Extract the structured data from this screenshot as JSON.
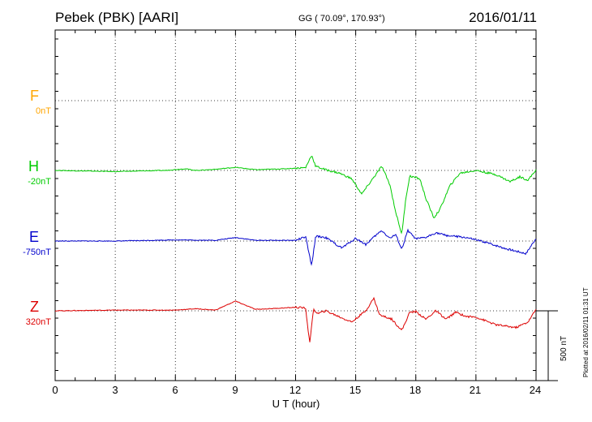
{
  "header": {
    "station": "Pebek (PBK)  [AARI]",
    "coords": "GG ( 70.09°, 170.93°)",
    "date": "2016/01/11"
  },
  "components": [
    {
      "name": "F",
      "offset": "0nT",
      "color": "#ffa500"
    },
    {
      "name": "H",
      "offset": "-20nT",
      "color": "#00cc00"
    },
    {
      "name": "E",
      "offset": "-750nT",
      "color": "#0000cc"
    },
    {
      "name": "Z",
      "offset": "320nT",
      "color": "#dd0000"
    }
  ],
  "scale_bar": {
    "label": "500 nT",
    "value": 500
  },
  "plotted_note": "Plotted at 2016/02/11 01:31  UT",
  "chart_data": {
    "type": "line",
    "title": "Pebek (PBK)  [AARI]",
    "xlabel": "U T (hour)",
    "xlim": [
      0,
      24
    ],
    "xticks": [
      "0",
      "3",
      "6",
      "9",
      "12",
      "15",
      "18",
      "21",
      "24"
    ],
    "grid": true,
    "units": "nT",
    "series": [
      {
        "name": "F",
        "x": [],
        "y": []
      },
      {
        "name": "H",
        "x": [
          0,
          3,
          5.5,
          6.5,
          7,
          8,
          9,
          10,
          11.5,
          12.5,
          12.8,
          13,
          13.5,
          14.2,
          14.8,
          15.3,
          15.6,
          16,
          16.3,
          16.7,
          17,
          17.3,
          17.5,
          17.7,
          18.2,
          18.5,
          18.9,
          19.2,
          19.7,
          20.2,
          21,
          22,
          22.7,
          23.2,
          23.6,
          24
        ],
        "y": [
          0,
          -8,
          0,
          12,
          0,
          8,
          22,
          5,
          12,
          20,
          110,
          30,
          5,
          -20,
          -60,
          -170,
          -110,
          -30,
          30,
          -100,
          -300,
          -460,
          -200,
          -40,
          -60,
          -200,
          -340,
          -280,
          -110,
          -20,
          0,
          -30,
          -80,
          -45,
          -70,
          5
        ]
      },
      {
        "name": "E",
        "x": [
          0,
          3,
          6,
          8,
          9,
          10,
          12,
          12.5,
          12.8,
          13,
          13.5,
          14.3,
          15,
          15.5,
          16,
          16.3,
          16.7,
          17,
          17.3,
          17.6,
          18,
          18.5,
          19,
          19.5,
          20.5,
          21.5,
          22.5,
          23.5,
          24
        ],
        "y": [
          0,
          0,
          8,
          5,
          25,
          5,
          5,
          30,
          -180,
          35,
          25,
          -50,
          20,
          -25,
          40,
          75,
          20,
          45,
          -60,
          75,
          15,
          25,
          60,
          40,
          25,
          -10,
          -55,
          -90,
          20
        ]
      },
      {
        "name": "Z",
        "x": [
          0,
          3,
          6,
          7,
          8,
          9,
          10,
          12,
          12.5,
          12.7,
          12.9,
          13.1,
          13.5,
          14.3,
          14.8,
          15.5,
          15.9,
          16.2,
          16.8,
          17.3,
          17.7,
          18,
          18.5,
          19,
          19.5,
          20,
          20.5,
          21,
          22,
          23,
          23.6,
          24
        ],
        "y": [
          0,
          5,
          5,
          15,
          5,
          70,
          10,
          25,
          20,
          -230,
          10,
          -20,
          0,
          -50,
          -80,
          0,
          90,
          -30,
          -60,
          -140,
          -10,
          -5,
          -60,
          0,
          -60,
          -10,
          -40,
          -45,
          -100,
          -120,
          -80,
          10
        ]
      }
    ]
  }
}
